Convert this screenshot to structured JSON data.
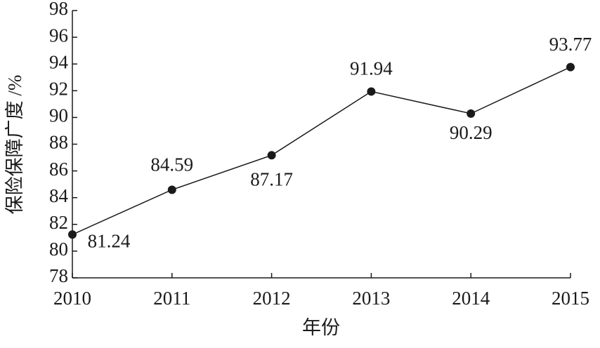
{
  "chart_data": {
    "type": "line",
    "x_label": "年份",
    "y_label": "保险保障广度 /%",
    "categories": [
      "2010",
      "2011",
      "2012",
      "2013",
      "2014",
      "2015"
    ],
    "series": [
      {
        "name": "保险保障广度",
        "color": "#1a1a1a",
        "values": [
          81.24,
          84.59,
          87.17,
          91.94,
          90.29,
          93.77
        ]
      }
    ],
    "ylim": [
      78,
      98
    ],
    "yticks": [
      78,
      80,
      82,
      84,
      86,
      88,
      90,
      92,
      94,
      96,
      98
    ],
    "grid": false
  }
}
